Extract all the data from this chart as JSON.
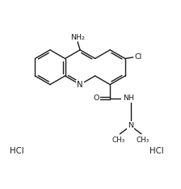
{
  "bg_color": "#ffffff",
  "line_color": "#1a1a1a",
  "line_width": 1.0,
  "font_size": 6.8,
  "fig_width": 2.24,
  "fig_height": 2.34,
  "dpi": 100,
  "xlim": [
    0,
    11
  ],
  "ylim": [
    0,
    11.5
  ]
}
